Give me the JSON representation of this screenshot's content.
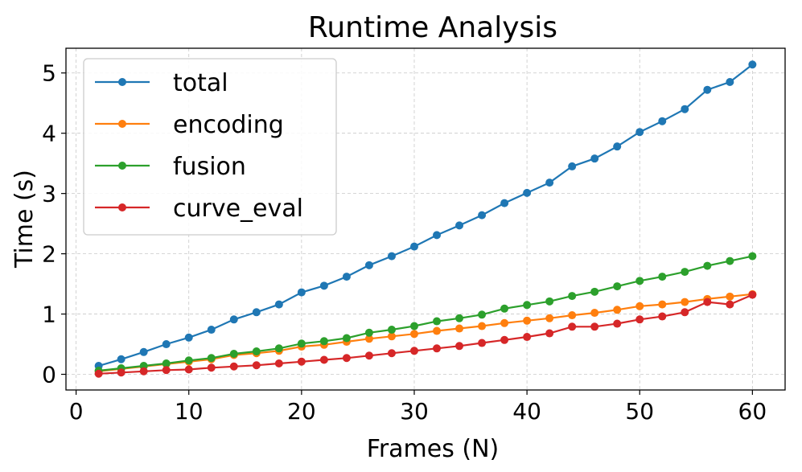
{
  "chart_data": {
    "type": "line",
    "title": "Runtime Analysis",
    "xlabel": "Frames (N)",
    "ylabel": "Time (s)",
    "xlim": [
      -0.9,
      62.9
    ],
    "ylim": [
      -0.26,
      5.41
    ],
    "xticks": [
      0,
      10,
      20,
      30,
      40,
      50,
      60
    ],
    "yticks": [
      0,
      1,
      2,
      3,
      4,
      5
    ],
    "grid": true,
    "legend_position": "top-left",
    "x": [
      2,
      4,
      6,
      8,
      10,
      12,
      14,
      16,
      18,
      20,
      22,
      24,
      26,
      28,
      30,
      32,
      34,
      36,
      38,
      40,
      42,
      44,
      46,
      48,
      50,
      52,
      54,
      56,
      58,
      60
    ],
    "series": [
      {
        "name": "total",
        "color": "#1f77b4",
        "values": [
          0.14,
          0.25,
          0.37,
          0.5,
          0.61,
          0.74,
          0.91,
          1.03,
          1.16,
          1.36,
          1.47,
          1.62,
          1.81,
          1.96,
          2.12,
          2.31,
          2.47,
          2.64,
          2.84,
          3.01,
          3.18,
          3.45,
          3.58,
          3.78,
          4.02,
          4.2,
          4.4,
          4.72,
          4.85,
          5.14
        ]
      },
      {
        "name": "encoding",
        "color": "#ff7f0e",
        "values": [
          0.05,
          0.09,
          0.13,
          0.17,
          0.21,
          0.25,
          0.32,
          0.35,
          0.39,
          0.46,
          0.49,
          0.54,
          0.59,
          0.63,
          0.67,
          0.72,
          0.76,
          0.8,
          0.85,
          0.89,
          0.93,
          0.98,
          1.02,
          1.07,
          1.13,
          1.16,
          1.2,
          1.25,
          1.29,
          1.33
        ]
      },
      {
        "name": "fusion",
        "color": "#2ca02c",
        "values": [
          0.06,
          0.1,
          0.14,
          0.18,
          0.23,
          0.27,
          0.34,
          0.38,
          0.43,
          0.51,
          0.55,
          0.6,
          0.69,
          0.74,
          0.8,
          0.88,
          0.93,
          0.99,
          1.09,
          1.15,
          1.21,
          1.3,
          1.37,
          1.46,
          1.55,
          1.62,
          1.7,
          1.8,
          1.88,
          1.96
        ]
      },
      {
        "name": "curve_eval",
        "color": "#d62728",
        "values": [
          0.01,
          0.03,
          0.05,
          0.07,
          0.08,
          0.11,
          0.13,
          0.15,
          0.18,
          0.21,
          0.24,
          0.27,
          0.31,
          0.35,
          0.39,
          0.43,
          0.47,
          0.52,
          0.57,
          0.62,
          0.68,
          0.79,
          0.79,
          0.84,
          0.91,
          0.96,
          1.03,
          1.2,
          1.16,
          1.32
        ]
      }
    ]
  }
}
